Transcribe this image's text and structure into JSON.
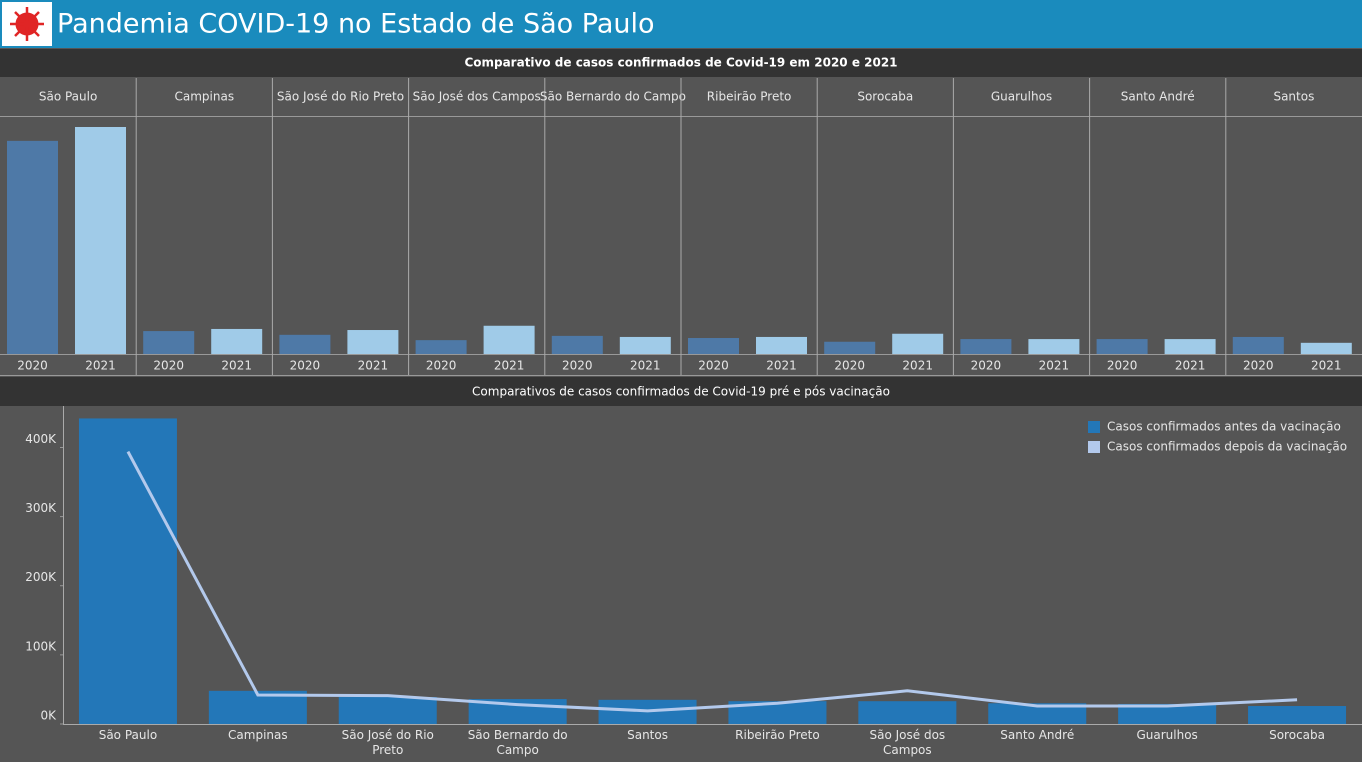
{
  "header": {
    "title": "Pandemia COVID-19  no Estado de São Paulo"
  },
  "chart_data": [
    {
      "type": "grouped_bar",
      "title": "Comparativo de casos confirmados de Covid-19 em 2020 e 2021",
      "categories": [
        "São Paulo",
        "Campinas",
        "São José do Rio Preto",
        "São José dos Campos",
        "São Bernardo do Campo",
        "Ribeirão Preto",
        "Sorocaba",
        "Guarulhos",
        "Santo André",
        "Santos"
      ],
      "series": [
        {
          "name": "2020",
          "color": "#4e79a7",
          "values": [
            400000,
            43000,
            36000,
            26000,
            34000,
            30000,
            23000,
            28000,
            28000,
            32000
          ]
        },
        {
          "name": "2021",
          "color": "#a0cbe8",
          "values": [
            426000,
            47000,
            45000,
            53000,
            32000,
            32000,
            38000,
            28000,
            28000,
            21000
          ]
        }
      ]
    },
    {
      "type": "bar_line",
      "title": "Comparativos de casos confirmados de Covid-19 pré e pós vacinação",
      "categories": [
        "São Paulo",
        "Campinas",
        "São José do Rio Preto",
        "São Bernardo do Campo",
        "Santos",
        "Ribeirão Preto",
        "São José dos Campos",
        "Santo André",
        "Guarulhos",
        "Sorocaba"
      ],
      "ylim": [
        0,
        460000
      ],
      "yticks": [
        {
          "value": 0,
          "label": "0K"
        },
        {
          "value": 100000,
          "label": "100K"
        },
        {
          "value": 200000,
          "label": "200K"
        },
        {
          "value": 300000,
          "label": "300K"
        },
        {
          "value": 400000,
          "label": "400K"
        }
      ],
      "legend": "top-right",
      "series": [
        {
          "name": "Casos confirmados antes da vacinação",
          "type": "bar",
          "color": "#2377b8",
          "values": [
            442000,
            48000,
            39000,
            36000,
            35000,
            33000,
            33000,
            30000,
            29000,
            26000
          ]
        },
        {
          "name": "Casos confirmados depois da vacinação",
          "type": "line",
          "color": "#b3c9ec",
          "values": [
            394000,
            42000,
            41000,
            28000,
            19000,
            30000,
            48000,
            26000,
            26000,
            35000
          ]
        }
      ]
    }
  ]
}
